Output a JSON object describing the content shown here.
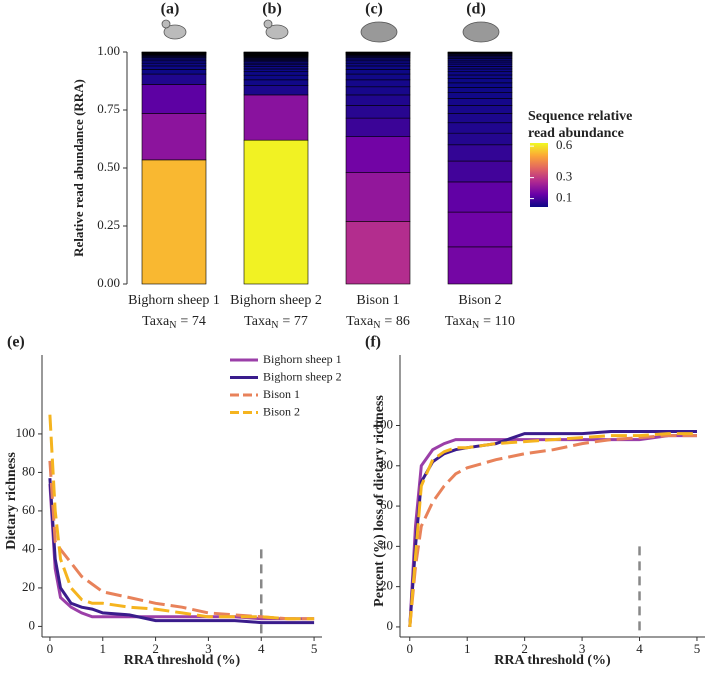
{
  "chart_data": [
    {
      "type": "stacked_bar",
      "panel_labels": [
        "(a)",
        "(b)",
        "(c)",
        "(d)"
      ],
      "categories": [
        "Bighorn sheep 1",
        "Bighorn sheep 2",
        "Bison 1",
        "Bison 2"
      ],
      "taxa_text": "Taxa",
      "taxa_sub": "N",
      "taxa_counts": [
        "= 74",
        "= 77",
        "= 86",
        "= 110"
      ],
      "ylabel": "Relative read abundance (RRA)",
      "ylim": [
        0,
        1
      ],
      "yticks": [
        {
          "value": 0,
          "label": "0.00"
        },
        {
          "value": 0.25,
          "label": "0.25"
        },
        {
          "value": 0.5,
          "label": "0.50"
        },
        {
          "value": 0.75,
          "label": "0.75"
        },
        {
          "value": 1,
          "label": "1.00"
        }
      ],
      "stacks": [
        [
          0.535,
          0.2,
          0.125,
          0.045,
          0.02,
          0.015,
          0.012,
          0.01,
          0.008,
          0.006,
          0.005,
          0.004,
          0.003,
          0.003,
          0.002,
          0.002,
          0.001,
          0.001,
          0.001,
          0.001,
          0.001
        ],
        [
          0.62,
          0.195,
          0.04,
          0.025,
          0.02,
          0.015,
          0.012,
          0.01,
          0.008,
          0.007,
          0.006,
          0.005,
          0.005,
          0.004,
          0.004,
          0.003,
          0.003,
          0.002,
          0.002,
          0.002,
          0.002,
          0.001,
          0.001,
          0.001,
          0.001,
          0.001,
          0.001,
          0.001,
          0.001,
          0.001,
          0.001
        ],
        [
          0.27,
          0.21,
          0.155,
          0.08,
          0.055,
          0.045,
          0.035,
          0.03,
          0.025,
          0.02,
          0.015,
          0.012,
          0.01,
          0.008,
          0.006,
          0.005,
          0.004,
          0.003,
          0.003,
          0.002,
          0.002,
          0.002,
          0.001,
          0.001,
          0.001
        ],
        [
          0.16,
          0.15,
          0.13,
          0.09,
          0.07,
          0.05,
          0.045,
          0.04,
          0.035,
          0.03,
          0.025,
          0.022,
          0.02,
          0.018,
          0.016,
          0.014,
          0.012,
          0.011,
          0.01,
          0.009,
          0.008,
          0.007,
          0.006,
          0.005,
          0.004,
          0.004,
          0.003,
          0.002,
          0.002,
          0.002
        ]
      ],
      "color_scale": {
        "title": [
          "Sequence relative",
          "read abundance"
        ],
        "colors": [
          "#0d0887",
          "#6a00a8",
          "#b12a90",
          "#e16462",
          "#fca636",
          "#f0f921"
        ],
        "lim": [
          0.02,
          0.63
        ],
        "ticks": [
          0.1,
          0.3,
          0.6
        ]
      }
    },
    {
      "type": "line",
      "panel_label": "(e)",
      "xlabel": "RRA threshold (%)",
      "ylabel": "Dietary richness",
      "x": [
        0,
        0.1,
        0.2,
        0.4,
        0.6,
        0.8,
        1,
        1.5,
        2,
        2.5,
        3,
        3.5,
        4,
        4.5,
        5
      ],
      "xlim": [
        -0.15,
        5.15
      ],
      "ylim": [
        -5.5,
        141
      ],
      "xticks": [
        0,
        1,
        2,
        3,
        4,
        5
      ],
      "yticks": [
        0,
        20,
        40,
        60,
        80,
        100
      ],
      "reference_x": 4,
      "legend": true,
      "series": [
        {
          "name": "Bighorn sheep 1",
          "color": "#9b3fa8",
          "dashed": false,
          "values": [
            74,
            30,
            15,
            10,
            7,
            5,
            5,
            5,
            5,
            5,
            5,
            5,
            4,
            4,
            4
          ]
        },
        {
          "name": "Bighorn sheep 2",
          "color": "#3a1c8c",
          "dashed": false,
          "values": [
            77,
            35,
            20,
            12,
            10,
            9,
            7,
            6,
            3,
            3,
            3,
            3,
            2,
            2,
            2
          ]
        },
        {
          "name": "Bison 1",
          "color": "#e8825a",
          "dashed": true,
          "values": [
            86,
            44,
            40,
            33,
            26,
            22,
            18,
            15,
            12,
            10,
            7,
            6,
            5,
            4,
            4
          ]
        },
        {
          "name": "Bison 2",
          "color": "#f5b41f",
          "dashed": true,
          "values": [
            110,
            60,
            35,
            20,
            14,
            12,
            12,
            10,
            9,
            7,
            5,
            5,
            5,
            4,
            4
          ]
        }
      ]
    },
    {
      "type": "line",
      "panel_label": "(f)",
      "xlabel": "RRA threshold (%)",
      "ylabel": "Percent (%) loss of dietary richness",
      "x": [
        0,
        0.1,
        0.2,
        0.4,
        0.6,
        0.8,
        1,
        1.5,
        2,
        2.5,
        3,
        3.5,
        4,
        4.5,
        5
      ],
      "xlim": [
        -0.17,
        5.14
      ],
      "ylim": [
        -5,
        135
      ],
      "xticks": [
        0,
        1,
        2,
        3,
        4,
        5
      ],
      "yticks": [
        0,
        20,
        40,
        60,
        80,
        100
      ],
      "reference_x": 4,
      "legend": false,
      "series": [
        {
          "color": "#9b3fa8",
          "dashed": false,
          "values": [
            0,
            50,
            80,
            88,
            91,
            93,
            93,
            93,
            93,
            93,
            93,
            93,
            93,
            95,
            95
          ]
        },
        {
          "color": "#3a1c8c",
          "dashed": false,
          "values": [
            0,
            40,
            72,
            82,
            86,
            88,
            89,
            91,
            96,
            96,
            96,
            97,
            97,
            97,
            97
          ]
        },
        {
          "color": "#e8825a",
          "dashed": true,
          "values": [
            0,
            30,
            50,
            62,
            70,
            76,
            79,
            83,
            86,
            88,
            91,
            93,
            94,
            95,
            95
          ]
        },
        {
          "color": "#f5b41f",
          "dashed": true,
          "values": [
            0,
            35,
            70,
            83,
            87,
            89,
            89,
            91,
            92,
            93,
            94,
            95,
            95,
            96,
            96
          ]
        }
      ]
    }
  ]
}
